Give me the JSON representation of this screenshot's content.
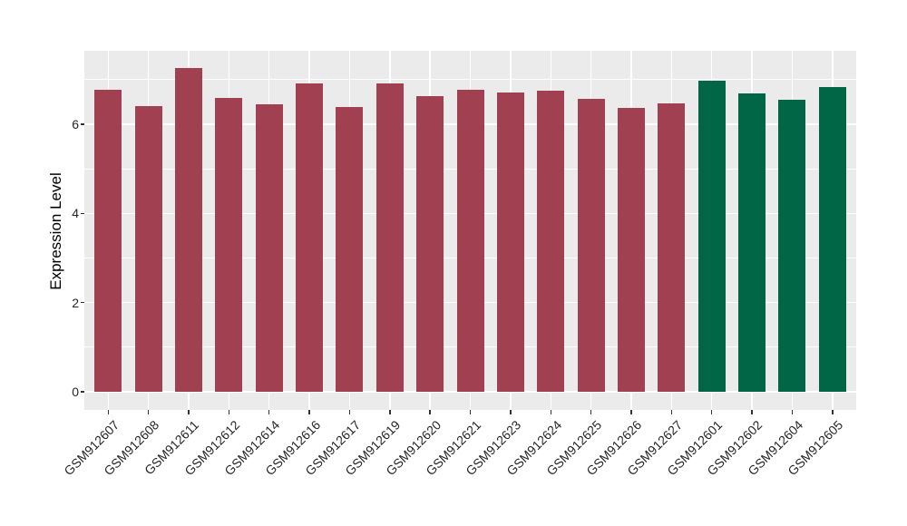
{
  "chart_data": {
    "type": "bar",
    "title": "",
    "xlabel": "",
    "ylabel": "Expression Level",
    "categories": [
      "GSM912607",
      "GSM912608",
      "GSM912611",
      "GSM912612",
      "GSM912614",
      "GSM912616",
      "GSM912617",
      "GSM912619",
      "GSM912620",
      "GSM912621",
      "GSM912623",
      "GSM912624",
      "GSM912625",
      "GSM912626",
      "GSM912627",
      "GSM912601",
      "GSM912602",
      "GSM912604",
      "GSM912605"
    ],
    "values": [
      6.77,
      6.4,
      7.26,
      6.59,
      6.45,
      6.92,
      6.38,
      6.91,
      6.63,
      6.77,
      6.71,
      6.76,
      6.57,
      6.36,
      6.46,
      6.98,
      6.69,
      6.56,
      6.83
    ],
    "bar_colors": [
      "#A04050",
      "#A04050",
      "#A04050",
      "#A04050",
      "#A04050",
      "#A04050",
      "#A04050",
      "#A04050",
      "#A04050",
      "#A04050",
      "#A04050",
      "#A04050",
      "#A04050",
      "#A04050",
      "#A04050",
      "#006646",
      "#006646",
      "#006646",
      "#006646"
    ],
    "group_colors": {
      "maroon_group": "#A04050",
      "green_group": "#006646"
    },
    "yticks": [
      0,
      2,
      4,
      6
    ],
    "yticks_minor": [
      1,
      3,
      5,
      7
    ],
    "ylim": [
      -0.39,
      7.64
    ],
    "grid": true,
    "legend_position": "none",
    "panel_background": "#EBEBEB",
    "gridline_color": "#FFFFFF",
    "axis_text_color": "#262626",
    "tick_color": "#333333"
  }
}
